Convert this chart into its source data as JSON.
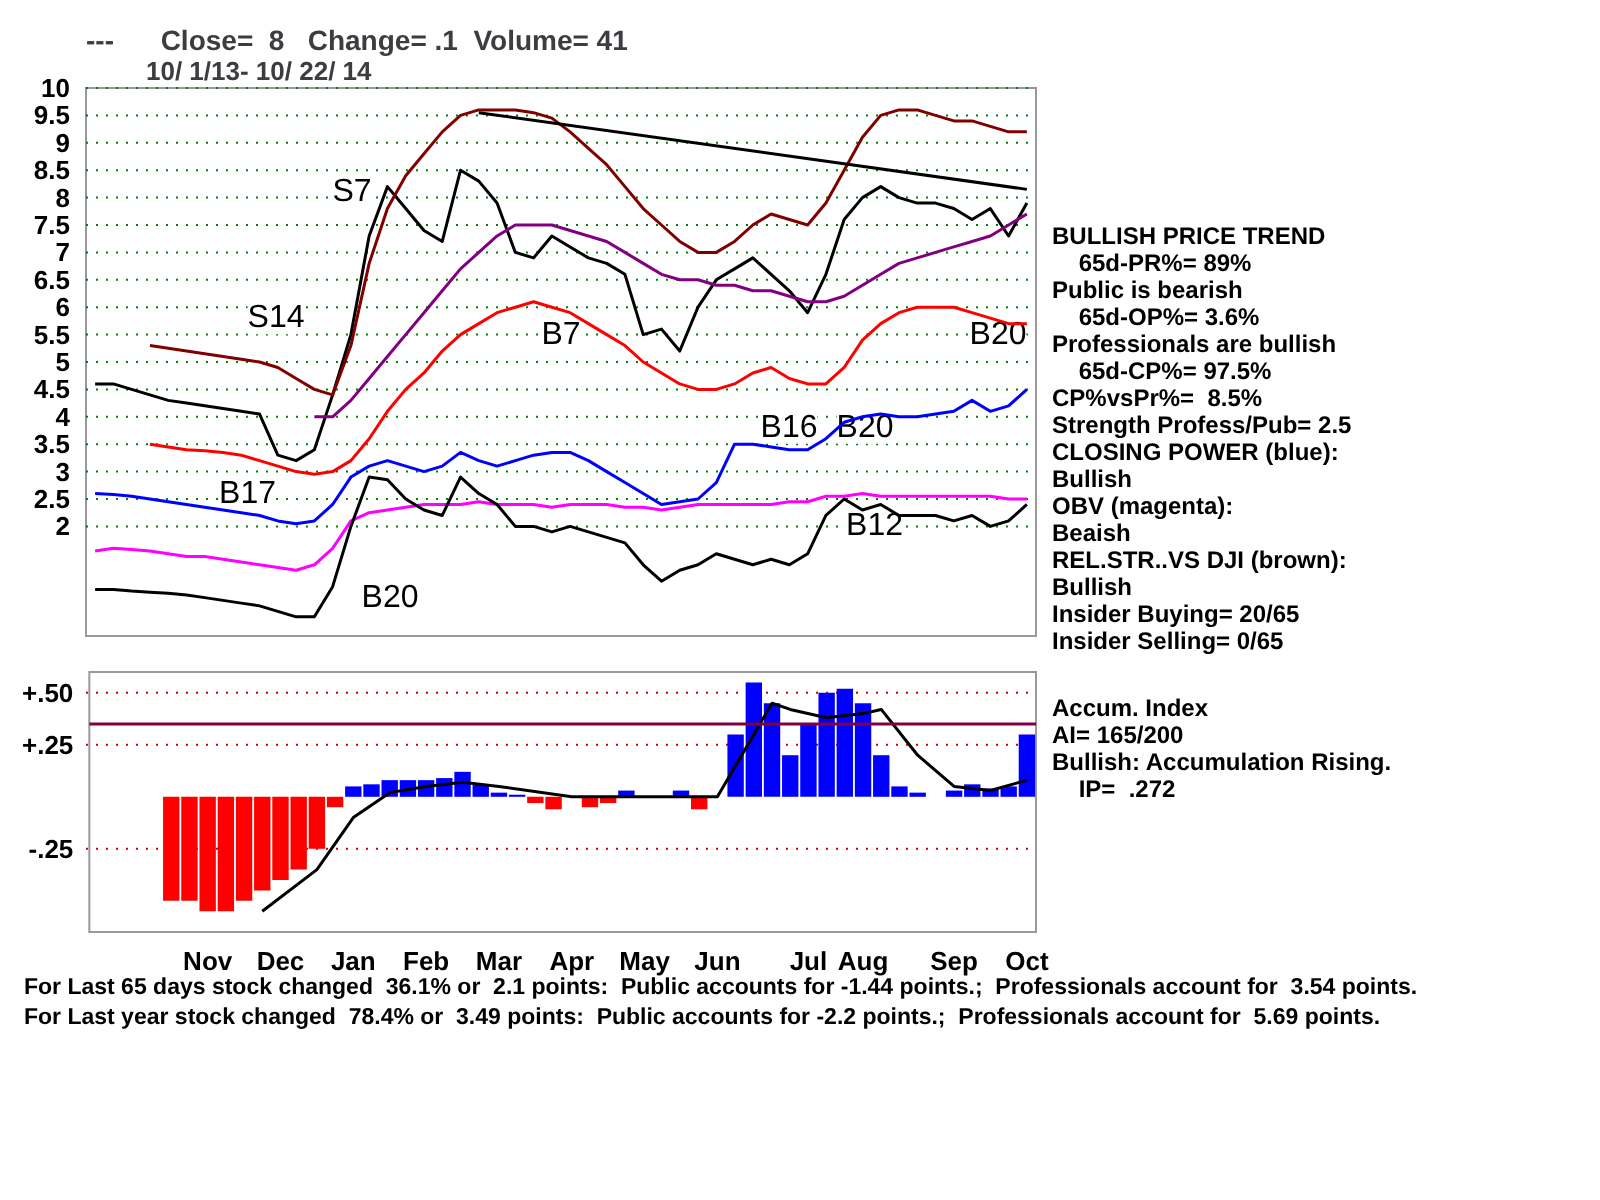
{
  "chart_data": [
    {
      "type": "line",
      "title": "---      Close=  8   Change= .1  Volume= 41",
      "subtitle": "10/ 1/13- 10/ 22/ 14",
      "categories": [
        null,
        null,
        null,
        null,
        null,
        null,
        null,
        null,
        null,
        null,
        null,
        null,
        null,
        null,
        null,
        null,
        null,
        null,
        null,
        null,
        null,
        null,
        null,
        null,
        null,
        null,
        null,
        null,
        null,
        null,
        null,
        null,
        null,
        null,
        null,
        null,
        null,
        null,
        null,
        null,
        null,
        null,
        null,
        null,
        null,
        null,
        null,
        null,
        null,
        null,
        null,
        null
      ],
      "series": [
        {
          "color": "#000000",
          "values": [
            4.6,
            4.6,
            4.5,
            4.4,
            4.3,
            4.25,
            4.2,
            4.15,
            4.1,
            4.05,
            3.3,
            3.2,
            3.4,
            4.4,
            5.5,
            7.3,
            8.2,
            7.8,
            7.4,
            7.2,
            8.5,
            8.3,
            7.9,
            7.0,
            6.9,
            7.3,
            7.1,
            6.9,
            6.8,
            6.6,
            5.5,
            5.6,
            5.2,
            6.0,
            6.5,
            6.7,
            6.9,
            6.6,
            6.3,
            5.9,
            6.6,
            7.6,
            8.0,
            8.2,
            8.0,
            7.9,
            7.9,
            7.8,
            7.6,
            7.8,
            7.3,
            7.9
          ]
        },
        {
          "color": "#800000",
          "values": [
            null,
            null,
            null,
            5.3,
            5.25,
            5.2,
            5.15,
            5.1,
            5.05,
            5.0,
            4.9,
            4.7,
            4.5,
            4.4,
            5.3,
            6.8,
            7.8,
            8.4,
            8.8,
            9.2,
            9.5,
            9.6,
            9.6,
            9.6,
            9.55,
            9.45,
            9.2,
            8.9,
            8.6,
            8.2,
            7.8,
            7.5,
            7.2,
            7.0,
            7.0,
            7.2,
            7.5,
            7.7,
            7.6,
            7.5,
            7.9,
            8.5,
            9.1,
            9.5,
            9.6,
            9.6,
            9.5,
            9.4,
            9.4,
            9.3,
            9.2,
            9.2
          ]
        },
        {
          "color": "#ff0000",
          "values": [
            null,
            null,
            null,
            3.5,
            3.45,
            3.4,
            3.38,
            3.35,
            3.3,
            3.2,
            3.1,
            3.0,
            2.95,
            3.0,
            3.2,
            3.6,
            4.1,
            4.5,
            4.8,
            5.2,
            5.5,
            5.7,
            5.9,
            6.0,
            6.1,
            6.0,
            5.9,
            5.7,
            5.5,
            5.3,
            5.0,
            4.8,
            4.6,
            4.5,
            4.5,
            4.6,
            4.8,
            4.9,
            4.7,
            4.6,
            4.6,
            4.9,
            5.4,
            5.7,
            5.9,
            6.0,
            6.0,
            6.0,
            5.9,
            5.8,
            5.7,
            5.7
          ]
        },
        {
          "color": "#800080",
          "values": [
            null,
            null,
            null,
            null,
            null,
            null,
            null,
            null,
            null,
            null,
            null,
            null,
            4.0,
            4.0,
            4.3,
            4.7,
            5.1,
            5.5,
            5.9,
            6.3,
            6.7,
            7.0,
            7.3,
            7.5,
            7.5,
            7.5,
            7.4,
            7.3,
            7.2,
            7.0,
            6.8,
            6.6,
            6.5,
            6.5,
            6.4,
            6.4,
            6.3,
            6.3,
            6.2,
            6.1,
            6.1,
            6.2,
            6.4,
            6.6,
            6.8,
            6.9,
            7.0,
            7.1,
            7.2,
            7.3,
            7.5,
            7.7
          ]
        },
        {
          "color": "#0000ff",
          "values": [
            2.6,
            2.58,
            2.55,
            2.5,
            2.45,
            2.4,
            2.35,
            2.3,
            2.25,
            2.2,
            2.1,
            2.05,
            2.1,
            2.4,
            2.9,
            3.1,
            3.2,
            3.1,
            3.0,
            3.1,
            3.35,
            3.2,
            3.1,
            3.2,
            3.3,
            3.35,
            3.35,
            3.2,
            3.0,
            2.8,
            2.6,
            2.4,
            2.45,
            2.5,
            2.8,
            3.5,
            3.5,
            3.45,
            3.4,
            3.4,
            3.6,
            3.9,
            4.0,
            4.05,
            4.0,
            4.0,
            4.05,
            4.1,
            4.3,
            4.1,
            4.2,
            4.5
          ]
        },
        {
          "color": "#ff00ff",
          "values": [
            1.55,
            1.6,
            1.58,
            1.55,
            1.5,
            1.45,
            1.45,
            1.4,
            1.35,
            1.3,
            1.25,
            1.2,
            1.3,
            1.6,
            2.1,
            2.25,
            2.3,
            2.35,
            2.4,
            2.4,
            2.4,
            2.45,
            2.4,
            2.4,
            2.4,
            2.35,
            2.4,
            2.4,
            2.4,
            2.35,
            2.35,
            2.3,
            2.35,
            2.4,
            2.4,
            2.4,
            2.4,
            2.4,
            2.45,
            2.45,
            2.55,
            2.55,
            2.6,
            2.55,
            2.55,
            2.55,
            2.55,
            2.55,
            2.55,
            2.55,
            2.5,
            2.5
          ]
        },
        {
          "color": "#000000",
          "values": [
            0.85,
            0.85,
            0.82,
            0.8,
            0.78,
            0.75,
            0.7,
            0.65,
            0.6,
            0.55,
            0.45,
            0.35,
            0.35,
            0.9,
            2.0,
            2.9,
            2.85,
            2.5,
            2.3,
            2.2,
            2.9,
            2.6,
            2.4,
            2.0,
            2.0,
            1.9,
            2.0,
            1.9,
            1.8,
            1.7,
            1.3,
            1.0,
            1.2,
            1.3,
            1.5,
            1.4,
            1.3,
            1.4,
            1.3,
            1.5,
            2.2,
            2.5,
            2.3,
            2.4,
            2.2,
            2.2,
            2.2,
            2.1,
            2.2,
            2.0,
            2.1,
            2.4
          ]
        },
        {
          "color": "#000000",
          "values": [
            null,
            null,
            null,
            null,
            null,
            null,
            null,
            null,
            null,
            null,
            null,
            null,
            null,
            null,
            null,
            null,
            null,
            null,
            null,
            null,
            null,
            9.55,
            null,
            null,
            null,
            null,
            null,
            null,
            null,
            null,
            null,
            null,
            null,
            null,
            null,
            null,
            null,
            null,
            null,
            null,
            null,
            null,
            null,
            null,
            null,
            null,
            null,
            null,
            null,
            null,
            null,
            8.15
          ]
        }
      ],
      "ylim": [
        0,
        10
      ],
      "yticks": [
        2,
        2.5,
        3,
        3.5,
        4,
        4.5,
        5,
        5.5,
        6,
        6.5,
        7,
        7.5,
        8,
        8.5,
        9,
        9.5,
        10
      ],
      "grid": "y",
      "tick_labels": "y",
      "annotations": [
        "S7",
        "S14",
        "B17",
        "B20",
        "B7",
        "B16",
        "B20",
        "B12",
        "B20",
        "BULLISH PRICE TREND",
        "    65d-PR%= 89%",
        "Public is bearish",
        "    65d-OP%= 3.6%",
        "Professionals are bullish",
        "    65d-CP%= 97.5%",
        "CP%vsPr%=  8.5%",
        "Strength Profess/Pub= 2.5",
        "CLOSING POWER (blue):",
        "Bullish",
        "OBV (magenta):",
        "Beaish",
        "REL.STR..VS DJI (brown):",
        "Bullish",
        "Insider Buying= 20/65",
        "Insider Selling= 0/65"
      ]
    },
    {
      "type": "bar",
      "categories": [
        null,
        null,
        null,
        null,
        null,
        null,
        "Nov",
        null,
        null,
        null,
        "Dec",
        null,
        null,
        null,
        "Jan",
        null,
        null,
        null,
        "Feb",
        null,
        null,
        null,
        "Mar",
        null,
        null,
        null,
        "Apr",
        null,
        null,
        null,
        "May",
        null,
        null,
        null,
        "Jun",
        null,
        null,
        null,
        null,
        "Jul",
        null,
        null,
        "Aug",
        null,
        null,
        null,
        null,
        "Sep",
        null,
        null,
        null,
        "Oct"
      ],
      "series": [
        {
          "values": [
            null,
            null,
            null,
            null,
            -0.5,
            -0.5,
            -0.55,
            -0.55,
            -0.5,
            -0.45,
            -0.4,
            -0.35,
            -0.25,
            -0.05,
            0.05,
            0.06,
            0.08,
            0.08,
            0.08,
            0.09,
            0.12,
            0.06,
            0.02,
            0.01,
            -0.03,
            -0.06,
            0.0,
            -0.05,
            -0.03,
            0.03,
            null,
            null,
            0.03,
            -0.06,
            0.0,
            0.3,
            0.55,
            0.45,
            0.2,
            0.35,
            0.5,
            0.52,
            0.45,
            0.2,
            0.05,
            0.02,
            0.0,
            0.03,
            0.06,
            0.04,
            0.05,
            0.3
          ],
          "colors": [
            null,
            null,
            null,
            null,
            "#ff0000",
            "#ff0000",
            "#ff0000",
            "#ff0000",
            "#ff0000",
            "#ff0000",
            "#ff0000",
            "#ff0000",
            "#ff0000",
            "#ff0000",
            "#0000ff",
            "#0000ff",
            "#0000ff",
            "#0000ff",
            "#0000ff",
            "#0000ff",
            "#0000ff",
            "#0000ff",
            "#0000ff",
            "#0000ff",
            "#ff0000",
            "#ff0000",
            "#0000ff",
            "#ff0000",
            "#ff0000",
            "#0000ff",
            "#0000ff",
            "#0000ff",
            "#0000ff",
            "#ff0000",
            "#0000ff",
            "#0000ff",
            "#0000ff",
            "#0000ff",
            "#0000ff",
            "#0000ff",
            "#0000ff",
            "#0000ff",
            "#0000ff",
            "#0000ff",
            "#0000ff",
            "#0000ff",
            "#0000ff",
            "#0000ff",
            "#0000ff",
            "#0000ff",
            "#0000ff",
            "#0000ff"
          ]
        },
        {
          "type": "line",
          "color": "#000000",
          "values": [
            null,
            null,
            null,
            null,
            null,
            null,
            null,
            null,
            null,
            -0.55,
            null,
            null,
            -0.35,
            null,
            -0.1,
            null,
            0.02,
            null,
            0.05,
            null,
            0.07,
            null,
            0.05,
            null,
            null,
            null,
            0.0,
            null,
            null,
            null,
            0.0,
            null,
            null,
            null,
            0.0,
            null,
            0.3,
            0.45,
            0.42,
            null,
            0.38,
            null,
            0.4,
            0.42,
            null,
            0.2,
            null,
            0.05,
            null,
            0.03,
            null,
            0.08
          ]
        }
      ],
      "ylim": [
        -0.65,
        0.6
      ],
      "yticks": [
        {
          "value": -0.25,
          "label": "-.25"
        },
        {
          "value": 0.25,
          "label": "+.25"
        },
        {
          "value": 0.5,
          "label": "+.50"
        }
      ],
      "grid": "y",
      "ref_lines": [
        {
          "axis": "y",
          "value": 0.35,
          "color": "#800040"
        }
      ],
      "annotations": [
        "Accum. Index",
        "AI= 165/200",
        "Bullish: Accumulation Rising.",
        "    IP=  .272",
        "For Last 65 days stock changed  36.1% or  2.1 points:  Public accounts for -1.44 points.;  Professionals account for  3.54 points.",
        "For Last year stock changed  78.4% or  3.49 points:  Public accounts for -2.2 points.;  Professionals account for  5.69 points."
      ]
    }
  ]
}
